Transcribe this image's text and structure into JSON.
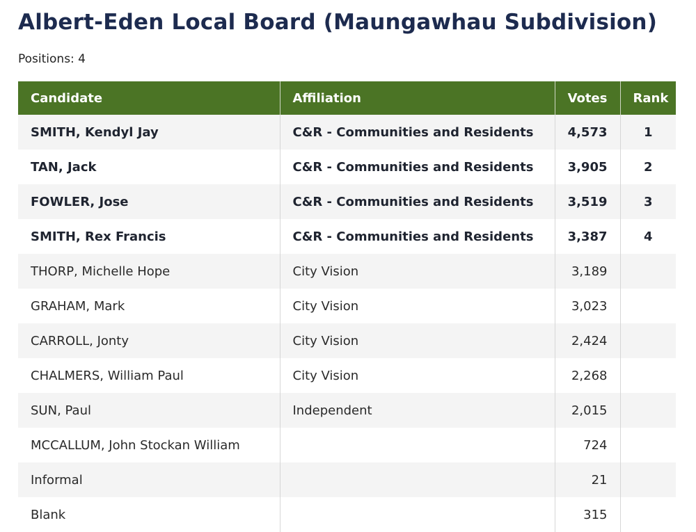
{
  "page": {
    "title": "Albert-Eden Local Board (Maungawhau Subdivision)",
    "positions_label": "Positions: 4"
  },
  "table": {
    "headers": {
      "candidate": "Candidate",
      "affiliation": "Affiliation",
      "votes": "Votes",
      "rank": "Rank"
    },
    "rows": [
      {
        "candidate": "SMITH, Kendyl Jay",
        "affiliation": "C&R - Communities and Residents",
        "votes": "4,573",
        "rank": "1"
      },
      {
        "candidate": "TAN, Jack",
        "affiliation": "C&R - Communities and Residents",
        "votes": "3,905",
        "rank": "2"
      },
      {
        "candidate": "FOWLER, Jose",
        "affiliation": "C&R - Communities and Residents",
        "votes": "3,519",
        "rank": "3"
      },
      {
        "candidate": "SMITH, Rex Francis",
        "affiliation": "C&R - Communities and Residents",
        "votes": "3,387",
        "rank": "4"
      },
      {
        "candidate": "THORP, Michelle Hope",
        "affiliation": "City Vision",
        "votes": "3,189",
        "rank": ""
      },
      {
        "candidate": "GRAHAM, Mark",
        "affiliation": "City Vision",
        "votes": "3,023",
        "rank": ""
      },
      {
        "candidate": "CARROLL, Jonty",
        "affiliation": "City Vision",
        "votes": "2,424",
        "rank": ""
      },
      {
        "candidate": "CHALMERS, William Paul",
        "affiliation": "City Vision",
        "votes": "2,268",
        "rank": ""
      },
      {
        "candidate": "SUN, Paul",
        "affiliation": "Independent",
        "votes": "2,015",
        "rank": ""
      },
      {
        "candidate": "MCCALLUM, John Stockan William",
        "affiliation": "",
        "votes": "724",
        "rank": ""
      },
      {
        "candidate": "Informal",
        "affiliation": "",
        "votes": "21",
        "rank": ""
      },
      {
        "candidate": "Blank",
        "affiliation": "",
        "votes": "315",
        "rank": ""
      }
    ]
  },
  "colors": {
    "header_bg": "#4b7425",
    "title": "#1d2b4f",
    "row_stripe": "#f4f4f4"
  }
}
